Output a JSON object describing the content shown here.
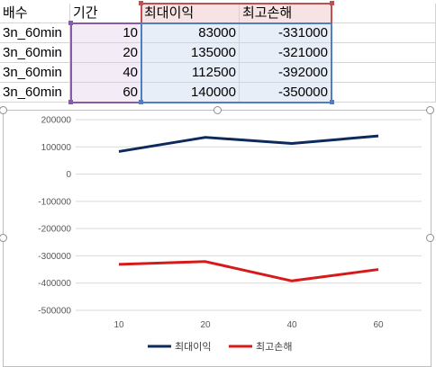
{
  "sheet": {
    "headers": {
      "a": "배수",
      "b": "기간",
      "c": "최대이익",
      "d": "최고손해"
    },
    "rows": [
      {
        "a": "3n_60min",
        "b": "10",
        "c": "83000",
        "d": "-331000"
      },
      {
        "a": "3n_60min",
        "b": "20",
        "c": "135000",
        "d": "-321000"
      },
      {
        "a": "3n_60min",
        "b": "40",
        "c": "112500",
        "d": "-392000"
      },
      {
        "a": "3n_60min",
        "b": "60",
        "c": "140000",
        "d": "-350000"
      }
    ]
  },
  "colors": {
    "series_profit": "#0d2a5c",
    "series_loss": "#d61a1a",
    "range_purple": "#8a5aa8",
    "range_red": "#c0504d",
    "range_blue": "#4f7fc0",
    "grid": "#d9d9d9"
  },
  "chart_data": {
    "type": "line",
    "categories": [
      "10",
      "20",
      "40",
      "60"
    ],
    "series": [
      {
        "name": "최대이익",
        "values": [
          83000,
          135000,
          112500,
          140000
        ]
      },
      {
        "name": "최고손해",
        "values": [
          -331000,
          -321000,
          -392000,
          -350000
        ]
      }
    ],
    "ylim": [
      -500000,
      200000
    ],
    "yticks": [
      "200000",
      "100000",
      "0",
      "-100000",
      "-200000",
      "-300000",
      "-400000",
      "-500000"
    ],
    "grid": true,
    "legend": "bottom"
  }
}
